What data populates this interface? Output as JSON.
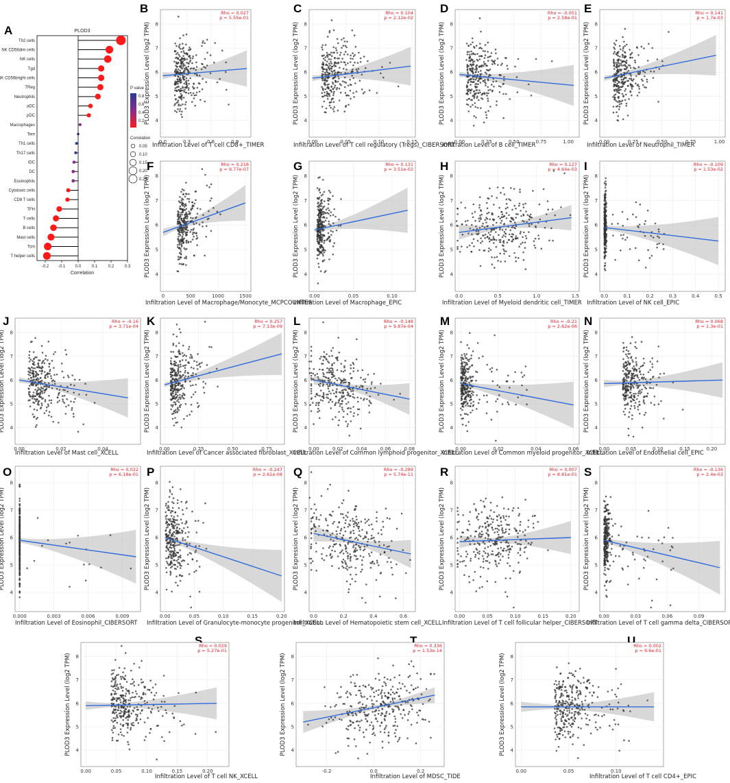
{
  "chart_data": [
    {
      "panel": "A",
      "type": "lollipop",
      "title": "PLOD3",
      "xlabel": "Correlation",
      "xlim": [
        -0.25,
        0.3
      ],
      "xticks": [
        "-0.2",
        "-0.1",
        "0.0",
        "0.1",
        "0.2",
        "0.3"
      ],
      "legend_pvalue_title": "P value",
      "legend_pvalue_ticks": [
        "0.8",
        "0.6",
        "0.4",
        "0.2"
      ],
      "legend_corr_title": "Correlation",
      "legend_corr_ticks": [
        "0.05",
        "0.10",
        "0.15",
        "0.20",
        "0.25"
      ],
      "categories": [
        "Th2 cells",
        "NK CD56dim cells",
        "NK cells",
        "Tgd",
        "NK CD56bright cells",
        "TReg",
        "Neutrophils",
        "aDC",
        "pDC",
        "Macrophages",
        "Tem",
        "Th1 cells",
        "Th17 cells",
        "iDC",
        "DC",
        "Eosinophils",
        "Cytotoxic cells",
        "CD8 T cells",
        "TFH",
        "T cells",
        "B cells",
        "Mast cells",
        "Tcm",
        "T helper cells"
      ],
      "values": [
        0.26,
        0.19,
        0.18,
        0.14,
        0.14,
        0.135,
        0.12,
        0.075,
        0.065,
        0.012,
        0.0,
        -0.01,
        -0.015,
        -0.025,
        -0.03,
        -0.03,
        -0.06,
        -0.065,
        -0.115,
        -0.135,
        -0.15,
        -0.165,
        -0.185,
        -0.19
      ],
      "pvalues": [
        0.0,
        0.0,
        0.0,
        0.0,
        0.0,
        0.0,
        0.0,
        0.05,
        0.1,
        0.6,
        0.9,
        0.8,
        0.8,
        0.5,
        0.4,
        0.4,
        0.15,
        0.12,
        0.0,
        0.0,
        0.0,
        0.0,
        0.0,
        0.0
      ]
    },
    {
      "panel": "B",
      "type": "scatter",
      "xlabel": "Infiltration Level of T cell CD8+_TIMER",
      "ylabel": "PLOD3 Expression Level (log2 TPM)",
      "rho": "Rho = 0.027",
      "p": "p = 5.55e-01",
      "xlim": [
        -0.03,
        1.1
      ],
      "xticks": [
        "0.0",
        "0.3",
        "0.6",
        "0.9"
      ],
      "ylim": [
        3.3,
        8.6
      ],
      "yticks": [
        "4",
        "5",
        "6",
        "7",
        "8"
      ],
      "fit": [
        [
          0.0,
          5.85
        ],
        [
          1.05,
          6.15
        ]
      ],
      "xc": 0.18,
      "xs": 0.18,
      "xmax": 1.05,
      "skew": 1,
      "n": 300
    },
    {
      "panel": "C",
      "type": "scatter",
      "xlabel": "Infiltration Level of T cell regulatory (Tregs)_CIBERSORT",
      "ylabel": "PLOD3 Expression Level (log2 TPM)",
      "rho": "Rho = 0.104",
      "p": "p = 2.12e-02",
      "xlim": [
        -0.005,
        0.155
      ],
      "xticks": [
        "0.00",
        "0.05",
        "0.10",
        "0.15"
      ],
      "ylim": [
        3.3,
        8.6
      ],
      "yticks": [
        "4",
        "5",
        "6",
        "7",
        "8"
      ],
      "fit": [
        [
          0.0,
          5.75
        ],
        [
          0.148,
          6.25
        ]
      ],
      "xc": 0.02,
      "xs": 0.03,
      "xmax": 0.148,
      "skew": 1,
      "n": 300
    },
    {
      "panel": "D",
      "type": "scatter",
      "xlabel": "Infiltration Level of B cell_TIMER",
      "ylabel": "PLOD3 Expression Level (log2 TPM)",
      "rho": "Rho = -0.051",
      "p": "p = 2.58e-01",
      "xlim": [
        -0.04,
        1.1
      ],
      "xticks": [
        "0.00",
        "0.25",
        "0.50",
        "0.75",
        "1.00"
      ],
      "ylim": [
        3.3,
        8.6
      ],
      "yticks": [
        "4",
        "5",
        "6",
        "7",
        "8"
      ],
      "fit": [
        [
          0.0,
          5.9
        ],
        [
          1.05,
          5.45
        ]
      ],
      "xc": 0.1,
      "xs": 0.18,
      "xmax": 1.05,
      "skew": 1,
      "n": 300
    },
    {
      "panel": "E",
      "type": "scatter",
      "xlabel": "Infiltration Level of Neutrophil_TIMER",
      "ylabel": "PLOD3 Expression Level (log2 TPM)",
      "rho": "Rho = 0.141",
      "p": "p = 1.7e-03",
      "xlim": [
        -0.04,
        1.05
      ],
      "xticks": [
        "0.00",
        "0.25",
        "0.50",
        "0.75",
        "1.00"
      ],
      "ylim": [
        3.3,
        8.6
      ],
      "yticks": [
        "4",
        "5",
        "6",
        "7",
        "8"
      ],
      "fit": [
        [
          0.0,
          5.75
        ],
        [
          0.97,
          6.7
        ]
      ],
      "xc": 0.1,
      "xs": 0.12,
      "xmax": 0.97,
      "skew": 1,
      "n": 300
    },
    {
      "panel": "F",
      "type": "scatter",
      "xlabel": "Infiltration Level of Macrophage/Monocyte_MCPCOUNTER",
      "ylabel": "PLOD3 Expression Level (log2 TPM)",
      "rho": "Rho = 0.218",
      "p": "p = 9.77e-07",
      "xlim": [
        -50,
        1600
      ],
      "xticks": [
        "0",
        "500",
        "1000",
        "1500"
      ],
      "ylim": [
        3.3,
        8.6
      ],
      "yticks": [
        "4",
        "5",
        "6",
        "7",
        "8"
      ],
      "fit": [
        [
          0.0,
          5.7
        ],
        [
          1500,
          6.9
        ]
      ],
      "xc": 300,
      "xs": 200,
      "xmax": 1500,
      "skew": 1,
      "n": 300
    },
    {
      "panel": "G",
      "type": "scatter",
      "xlabel": "Infiltration Level of Macrophage_EPIC",
      "ylabel": "PLOD3 Expression Level (log2 TPM)",
      "rho": "Rho = 0.131",
      "p": "p = 3.51e-03",
      "xlim": [
        -0.007,
        0.13
      ],
      "xticks": [
        "0.00",
        "0.05",
        "0.10"
      ],
      "ylim": [
        3.3,
        8.6
      ],
      "yticks": [
        "4",
        "5",
        "6",
        "7",
        "8"
      ],
      "fit": [
        [
          0.0,
          5.8
        ],
        [
          0.12,
          6.6
        ]
      ],
      "xc": 0.005,
      "xs": 0.008,
      "xmax": 0.12,
      "skew": 1,
      "n": 300
    },
    {
      "panel": "H",
      "type": "scatter",
      "xlabel": "Infiltration Level of Myeloid dendritic cell_TIMER",
      "ylabel": "PLOD3 Expression Level (log2 TPM)",
      "rho": "Rho = 0.127",
      "p": "p = 4.64e-03",
      "xlim": [
        -0.05,
        1.55
      ],
      "xticks": [
        "0.0",
        "0.5",
        "1.0",
        "1.5"
      ],
      "ylim": [
        3.3,
        8.6
      ],
      "yticks": [
        "4",
        "5",
        "6",
        "7",
        "8"
      ],
      "fit": [
        [
          0.0,
          5.7
        ],
        [
          1.45,
          6.3
        ]
      ],
      "xc": 0.55,
      "xs": 0.3,
      "xmax": 1.45,
      "skew": 0,
      "n": 300
    },
    {
      "panel": "I",
      "type": "scatter",
      "xlabel": "Infiltration Level of NK cell_EPIC",
      "ylabel": "PLOD3 Expression Level (log2 TPM)",
      "rho": "Rho = -0.109",
      "p": "p = 1.53e-02",
      "xlim": [
        -0.02,
        0.53
      ],
      "xticks": [
        "0.0",
        "0.1",
        "0.2",
        "0.3",
        "0.4",
        "0.5"
      ],
      "ylim": [
        3.3,
        8.6
      ],
      "yticks": [
        "4",
        "5",
        "6",
        "7",
        "8"
      ],
      "fit": [
        [
          0.0,
          5.9
        ],
        [
          0.5,
          5.35
        ]
      ],
      "xc": 0.0,
      "xs": 0.004,
      "xmax": 0.5,
      "skew": 2,
      "n": 300
    },
    {
      "panel": "J",
      "type": "scatter",
      "xlabel": "Infiltration Level of Mast cell_XCELL",
      "ylabel": "PLOD3 Expression Level (log2 TPM)",
      "rho": "Rho = -0.16",
      "p": "p = 3.71e-04",
      "xlim": [
        -0.002,
        0.058
      ],
      "xticks": [
        "0.00",
        "0.02",
        "0.04"
      ],
      "ylim": [
        3.3,
        8.6
      ],
      "yticks": [
        "4",
        "5",
        "6",
        "7",
        "8"
      ],
      "fit": [
        [
          0.0,
          6.0
        ],
        [
          0.052,
          5.25
        ]
      ],
      "xc": 0.006,
      "xs": 0.008,
      "xmax": 0.052,
      "skew": 1,
      "n": 300
    },
    {
      "panel": "K",
      "type": "scatter",
      "xlabel": "Infiltration Level of Cancer associated fibroblast_XCELL",
      "ylabel": "PLOD3 Expression Level (log2 TPM)",
      "rho": "Rho = 0.257",
      "p": "p = 7.13e-09",
      "xlim": [
        -0.03,
        0.88
      ],
      "xticks": [
        "0.00",
        "0.25",
        "0.50",
        "0.75"
      ],
      "ylim": [
        3.3,
        8.6
      ],
      "yticks": [
        "4",
        "5",
        "6",
        "7",
        "8"
      ],
      "fit": [
        [
          0.0,
          5.8
        ],
        [
          0.86,
          7.1
        ]
      ],
      "xc": 0.06,
      "xs": 0.08,
      "xmax": 0.86,
      "skew": 1,
      "n": 300
    },
    {
      "panel": "L",
      "type": "scatter",
      "xlabel": "Infiltration Level of Common lymphoid progenitor_XCELL",
      "ylabel": "PLOD3 Expression Level (log2 TPM)",
      "rho": "Rho = -0.148",
      "p": "p = 9.87e-04",
      "xlim": [
        -0.004,
        0.085
      ],
      "xticks": [
        "0.00",
        "0.02",
        "0.04",
        "0.06",
        "0.08"
      ],
      "ylim": [
        3.3,
        8.6
      ],
      "yticks": [
        "4",
        "5",
        "6",
        "7",
        "8"
      ],
      "fit": [
        [
          0.0,
          6.0
        ],
        [
          0.08,
          5.2
        ]
      ],
      "xc": 0.02,
      "xs": 0.015,
      "xmax": 0.08,
      "skew": 0,
      "n": 300
    },
    {
      "panel": "M",
      "type": "scatter",
      "xlabel": "Infiltration Level of Common myeloid progenitor_XCELL",
      "ylabel": "PLOD3 Expression Level (log2 TPM)",
      "rho": "Rho = -0.21",
      "p": "p = 2.62e-06",
      "xlim": [
        -0.003,
        0.063
      ],
      "xticks": [
        "0.00",
        "0.02",
        "0.04",
        "0.06"
      ],
      "ylim": [
        3.3,
        8.6
      ],
      "yticks": [
        "4",
        "5",
        "6",
        "7",
        "8"
      ],
      "fit": [
        [
          0.0,
          5.85
        ],
        [
          0.06,
          4.95
        ]
      ],
      "xc": 0.0,
      "xs": 0.003,
      "xmax": 0.06,
      "skew": 2,
      "n": 300
    },
    {
      "panel": "N",
      "type": "scatter",
      "xlabel": "Infiltration Level of Endothelial cell_EPIC",
      "ylabel": "PLOD3 Expression Level (log2 TPM)",
      "rho": "Rho = 0.068",
      "p": "p = 1.3e-01",
      "xlim": [
        -0.008,
        0.225
      ],
      "xticks": [
        "0.00",
        "0.05",
        "0.10",
        "0.15",
        "0.20"
      ],
      "ylim": [
        3.3,
        8.6
      ],
      "yticks": [
        "4",
        "5",
        "6",
        "7",
        "8"
      ],
      "fit": [
        [
          0.0,
          5.85
        ],
        [
          0.22,
          6.0
        ]
      ],
      "xc": 0.04,
      "xs": 0.025,
      "xmax": 0.22,
      "skew": 1,
      "n": 300
    },
    {
      "panel": "O",
      "type": "scatter",
      "xlabel": "Infiltration Level of Eosinophil_CIBERSORT",
      "ylabel": "PLOD3 Expression Level (log2 TPM)",
      "rho": "Rho = 0.022",
      "p": "p = 6.18e-01",
      "xlim": [
        -0.0004,
        0.0106
      ],
      "xticks": [
        "0.000",
        "0.003",
        "0.006",
        "0.009"
      ],
      "ylim": [
        3.3,
        8.6
      ],
      "yticks": [
        "4",
        "5",
        "6",
        "7",
        "8"
      ],
      "fit": [
        [
          0.0,
          5.9
        ],
        [
          0.0102,
          5.3
        ]
      ],
      "xc": 0.0,
      "xs": 0.0,
      "xmax": 0.0102,
      "skew": 3,
      "n": 300
    },
    {
      "panel": "P",
      "type": "scatter",
      "xlabel": "Infiltration Level of Granulocyte-monocyte progenitor_XCELL",
      "ylabel": "PLOD3 Expression Level (log2 TPM)",
      "rho": "Rho = -0.247",
      "p": "p = 2.61e-08",
      "xlim": [
        -0.008,
        0.205
      ],
      "xticks": [
        "0.00",
        "0.05",
        "0.10",
        "0.15",
        "0.20"
      ],
      "ylim": [
        3.3,
        8.6
      ],
      "yticks": [
        "4",
        "5",
        "6",
        "7",
        "8"
      ],
      "fit": [
        [
          0.0,
          6.0
        ],
        [
          0.2,
          4.6
        ]
      ],
      "xc": 0.005,
      "xs": 0.02,
      "xmax": 0.2,
      "skew": 1,
      "n": 300
    },
    {
      "panel": "Q",
      "type": "scatter",
      "xlabel": "Infiltration Level of Hematopoietic stem cell_XCELL",
      "ylabel": "PLOD3 Expression Level (log2 TPM)",
      "rho": "Rho = -0.289",
      "p": "p = 5.74e-11",
      "xlim": [
        -0.03,
        0.68
      ],
      "xticks": [
        "0.0",
        "0.2",
        "0.4",
        "0.6"
      ],
      "ylim": [
        3.3,
        8.6
      ],
      "yticks": [
        "4",
        "5",
        "6",
        "7",
        "8"
      ],
      "fit": [
        [
          0.0,
          6.15
        ],
        [
          0.65,
          5.4
        ]
      ],
      "xc": 0.25,
      "xs": 0.15,
      "xmax": 0.65,
      "skew": 0,
      "n": 300
    },
    {
      "panel": "R",
      "type": "scatter",
      "xlabel": "Infiltration Level of T cell follicular helper_CIBERSORT",
      "ylabel": "PLOD3 Expression Level (log2 TPM)",
      "rho": "Rho = 0.007",
      "p": "p = 8.81e-01",
      "xlim": [
        -0.008,
        0.215
      ],
      "xticks": [
        "0.00",
        "0.05",
        "0.10",
        "0.15",
        "0.20"
      ],
      "ylim": [
        3.3,
        8.6
      ],
      "yticks": [
        "4",
        "5",
        "6",
        "7",
        "8"
      ],
      "fit": [
        [
          0.0,
          5.85
        ],
        [
          0.2,
          6.0
        ]
      ],
      "xc": 0.06,
      "xs": 0.035,
      "xmax": 0.2,
      "skew": 0,
      "n": 300
    },
    {
      "panel": "S",
      "type": "scatter",
      "xlabel": "Infiltration Level of T cell gamma delta_CIBERSORT",
      "ylabel": "PLOD3 Expression Level (log2 TPM)",
      "rho": "Rho = -0.136",
      "p": "p = 2.4e-03",
      "xlim": [
        -0.004,
        0.115
      ],
      "xticks": [
        "0.00",
        "0.03",
        "0.06",
        "0.09"
      ],
      "ylim": [
        3.3,
        8.6
      ],
      "yticks": [
        "4",
        "5",
        "6",
        "7",
        "8"
      ],
      "fit": [
        [
          0.0,
          5.9
        ],
        [
          0.11,
          4.9
        ]
      ],
      "xc": 0.0,
      "xs": 0.003,
      "xmax": 0.11,
      "skew": 2,
      "n": 300
    },
    {
      "panel": "S",
      "type": "scatter",
      "xlabel": "Infiltration Level of T cell NK_XCELL",
      "ylabel": "PLOD3 Expression Level (log2 TPM)",
      "rho": "Rho = 0.029",
      "p": "p = 5.27e-01",
      "xlim": [
        -0.008,
        0.235
      ],
      "xticks": [
        "0.00",
        "0.05",
        "0.10",
        "0.15",
        "0.20"
      ],
      "ylim": [
        3.3,
        8.6
      ],
      "yticks": [
        "4",
        "5",
        "6",
        "7",
        "8"
      ],
      "fit": [
        [
          0.0,
          5.9
        ],
        [
          0.215,
          6.0
        ]
      ],
      "xc": 0.05,
      "xs": 0.04,
      "xmax": 0.215,
      "skew": 1,
      "n": 320
    },
    {
      "panel": "T",
      "type": "scatter",
      "xlabel": "Infiltration Level of MDSC_TIDE",
      "ylabel": "PLOD3 Expression Level (log2 TPM)",
      "rho": "Rho = 0.336",
      "p": "p = 1.53e-14",
      "xlim": [
        -0.33,
        0.3
      ],
      "xticks": [
        "-0.2",
        "0.0",
        "0.2"
      ],
      "ylim": [
        3.3,
        8.6
      ],
      "yticks": [
        "4",
        "5",
        "6",
        "7",
        "8"
      ],
      "fit": [
        [
          -0.3,
          5.2
        ],
        [
          0.26,
          6.35
        ]
      ],
      "xc": 0.02,
      "xs": 0.11,
      "xmax": 0.26,
      "skew": 0,
      "n": 320
    },
    {
      "panel": "U",
      "type": "scatter",
      "xlabel": "Infiltration Level of T cell CD4+_EPIC",
      "ylabel": "PLOD3 Expression Level (log2 TPM)",
      "rho": "Rho = 0.002",
      "p": "p = 9.6e-01",
      "xlim": [
        -0.006,
        0.15
      ],
      "xticks": [
        "0.00",
        "0.05",
        "0.10"
      ],
      "ylim": [
        3.3,
        8.6
      ],
      "yticks": [
        "4",
        "5",
        "6",
        "7",
        "8"
      ],
      "fit": [
        [
          0.0,
          5.85
        ],
        [
          0.14,
          5.85
        ]
      ],
      "xc": 0.04,
      "xs": 0.025,
      "xmax": 0.14,
      "skew": 1,
      "n": 320
    }
  ]
}
